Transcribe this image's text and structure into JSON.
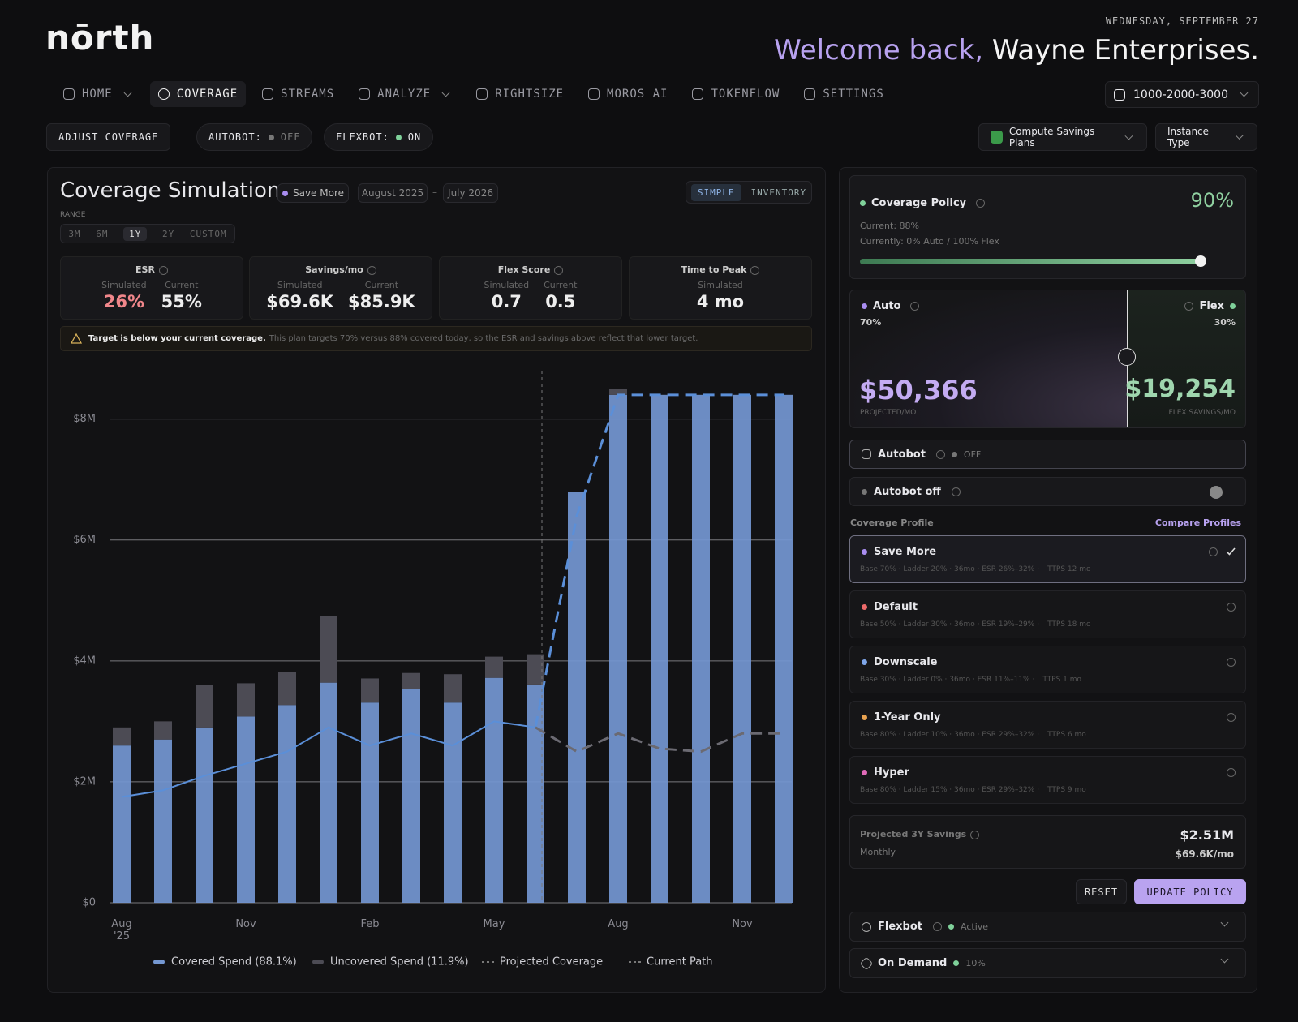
{
  "header": {
    "logo": "nōrth",
    "date": "WEDNESDAY, SEPTEMBER 27",
    "welcome": "Welcome back,",
    "company": "Wayne Enterprises."
  },
  "nav": {
    "items": [
      "HOME",
      "COVERAGE",
      "STREAMS",
      "ANALYZE",
      "RIGHTSIZE",
      "MOROS AI",
      "TOKENFLOW",
      "SETTINGS"
    ],
    "account": "1000-2000-3000"
  },
  "toolbar": {
    "adjust": "ADJUST COVERAGE",
    "autobot": {
      "label": "AUTOBOT:",
      "state": "OFF"
    },
    "flexbot": {
      "label": "FLEXBOT:",
      "state": "ON"
    },
    "filters": [
      "Compute Savings Plans",
      "Instance Type"
    ]
  },
  "simulation": {
    "title": "Coverage Simulation",
    "profile": "Save More",
    "start": "August 2025",
    "separator": "–",
    "end": "July 2026",
    "views": [
      "SIMPLE",
      "INVENTORY"
    ],
    "range_label": "RANGE",
    "ranges": [
      "3M",
      "6M",
      "1Y",
      "2Y",
      "CUSTOM"
    ],
    "metrics": [
      {
        "title": "ESR",
        "columns": [
          {
            "label": "Simulated",
            "value": "26%"
          },
          {
            "label": "Current",
            "value": "55%"
          }
        ]
      },
      {
        "title": "Savings/mo",
        "columns": [
          {
            "label": "Simulated",
            "value": "$69.6K"
          },
          {
            "label": "Current",
            "value": "$85.9K"
          }
        ]
      },
      {
        "title": "Flex Score",
        "columns": [
          {
            "label": "Simulated",
            "value": "0.7"
          },
          {
            "label": "Current",
            "value": "0.5"
          }
        ]
      },
      {
        "title": "Time to Peak",
        "columns": [
          {
            "label": "Simulated",
            "value": "4 mo"
          }
        ]
      }
    ],
    "warning": {
      "title": "Target is below your current coverage.",
      "text": "This plan targets 70% versus 88% covered today, so the ESR and savings above reflect that lower target."
    }
  },
  "chart_data": {
    "type": "bar",
    "categories": [
      "Aug '25",
      null,
      null,
      "Nov",
      null,
      null,
      "Feb",
      null,
      null,
      "May",
      null,
      null,
      "Aug",
      null,
      null,
      "Nov",
      null
    ],
    "series": [
      {
        "name": "Covered Spend (88.1%)",
        "type": "bar",
        "color": "#7497d2",
        "values": [
          2600000,
          2700000,
          2900000,
          3080000,
          3270000,
          3640000,
          3310000,
          3530000,
          3310000,
          3720000,
          3610000,
          6800000,
          8400000,
          8400000,
          8400000,
          8400000,
          8400000
        ]
      },
      {
        "name": "Uncovered Spend (11.9%)",
        "type": "bar",
        "color": "#4c4b54",
        "values": [
          300000,
          300000,
          700000,
          550000,
          550000,
          1100000,
          400000,
          270000,
          470000,
          350000,
          500000,
          0,
          100000,
          0,
          0,
          0,
          0
        ]
      },
      {
        "name": "Projected Coverage",
        "type": "line",
        "color": "#5b8fd8",
        "dashed_from": 10,
        "values": [
          1750000,
          1860000,
          2100000,
          2300000,
          2500000,
          2900000,
          2600000,
          2800000,
          2600000,
          3000000,
          2900000,
          6400000,
          8400000,
          8400000,
          8400000,
          8400000,
          8400000
        ]
      },
      {
        "name": "Current Path",
        "type": "line",
        "color": "#6b6a72",
        "dashed": true,
        "values": [
          null,
          null,
          null,
          null,
          null,
          null,
          null,
          null,
          null,
          null,
          2900000,
          2500000,
          2800000,
          2550000,
          2500000,
          2800000,
          2800000
        ]
      }
    ],
    "ylim": [
      0,
      8800000
    ],
    "yticks": [
      {
        "value": 0,
        "label": "$0"
      },
      {
        "value": 2000000,
        "label": "$2M"
      },
      {
        "value": 4000000,
        "label": "$4M"
      },
      {
        "value": 6000000,
        "label": "$6M"
      },
      {
        "value": 8000000,
        "label": "$8M"
      }
    ],
    "grid": true
  },
  "panel": {
    "policy": {
      "title": "Coverage Policy",
      "value": "90%",
      "current": "Current: 88%",
      "mix": "Currently: 0% Auto / 100% Flex"
    },
    "auto": {
      "label": "Auto",
      "pct": "70%",
      "amount": "$50,366",
      "caption": "PROJECTED/MO"
    },
    "flex": {
      "label": "Flex",
      "pct": "30%",
      "amount": "$19,254",
      "caption": "FLEX SAVINGS/MO"
    },
    "autobot": {
      "title": "Autobot",
      "state": "OFF",
      "row": "Autobot off"
    },
    "profiles_heading": "Coverage Profile",
    "compare": "Compare Profiles",
    "profiles": [
      {
        "name": "Save More",
        "detail": "Base 70% · Ladder 20% · 36mo · ESR 26%–32% ·",
        "ttps": "TTPS 12 mo"
      },
      {
        "name": "Default",
        "detail": "Base 50% · Ladder 30% · 36mo · ESR 19%–29% ·",
        "ttps": "TTPS 18 mo"
      },
      {
        "name": "Downscale",
        "detail": "Base 30% · Ladder 0% · 36mo · ESR 11%–11% ·",
        "ttps": "TTPS 1 mo"
      },
      {
        "name": "1-Year Only",
        "detail": "Base 80% · Ladder 10% · 36mo · ESR 29%–32% ·",
        "ttps": "TTPS 6 mo"
      },
      {
        "name": "Hyper",
        "detail": "Base 80% · Ladder 15% · 36mo · ESR 29%–32% ·",
        "ttps": "TTPS 9 mo"
      }
    ],
    "savings": {
      "label": "Projected 3Y Savings",
      "sub": "Monthly",
      "value": "$2.51M",
      "monthly": "$69.6K/mo"
    },
    "reset": "RESET",
    "update": "UPDATE POLICY",
    "flexbot": {
      "title": "Flexbot",
      "status": "Active"
    },
    "on_demand": {
      "title": "On Demand",
      "status": "10%"
    }
  }
}
